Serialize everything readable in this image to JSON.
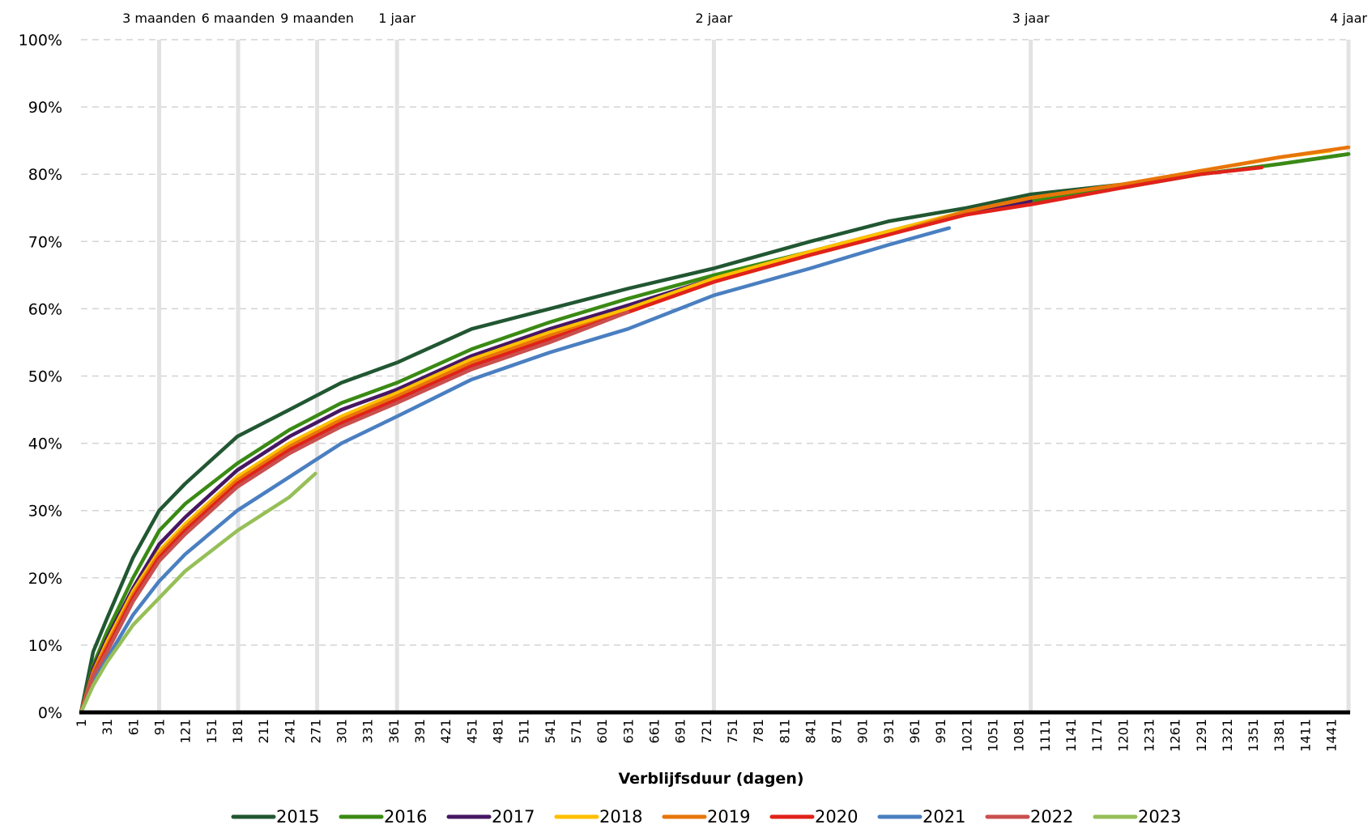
{
  "chart_data": {
    "type": "line",
    "title": "",
    "xlabel": "Verblijfsduur (dagen)",
    "ylabel": "",
    "xlim": [
      1,
      1461
    ],
    "ylim": [
      0,
      100
    ],
    "y_ticks": [
      0,
      10,
      20,
      30,
      40,
      50,
      60,
      70,
      80,
      90,
      100
    ],
    "y_tick_labels": [
      "0%",
      "10%",
      "20%",
      "30%",
      "40%",
      "50%",
      "60%",
      "70%",
      "80%",
      "90%",
      "100%"
    ],
    "x_tick_labels": [
      "1",
      "31",
      "61",
      "91",
      "121",
      "151",
      "181",
      "211",
      "241",
      "271",
      "301",
      "331",
      "361",
      "391",
      "421",
      "451",
      "481",
      "511",
      "541",
      "571",
      "601",
      "631",
      "661",
      "691",
      "721",
      "751",
      "781",
      "811",
      "841",
      "871",
      "901",
      "931",
      "961",
      "991",
      "1021",
      "1051",
      "1081",
      "1111",
      "1141",
      "1171",
      "1201",
      "1231",
      "1261",
      "1291",
      "1321",
      "1351",
      "1381",
      "1411",
      "1441"
    ],
    "markers": [
      {
        "day": 91,
        "label": "3 maanden"
      },
      {
        "day": 182,
        "label": "6 maanden"
      },
      {
        "day": 273,
        "label": "9 maanden"
      },
      {
        "day": 365,
        "label": "1 jaar"
      },
      {
        "day": 730,
        "label": "2 jaar"
      },
      {
        "day": 1095,
        "label": "3 jaar"
      },
      {
        "day": 1461,
        "label": "4 jaar"
      }
    ],
    "grid": true,
    "legend_position": "bottom",
    "series": [
      {
        "name": "2015",
        "color": "#215732",
        "x": [
          1,
          15,
          31,
          61,
          91,
          121,
          181,
          241,
          271,
          301,
          365,
          451,
          541,
          631,
          730,
          841,
          931,
          1021,
          1095,
          1201,
          1291,
          1381,
          1461
        ],
        "y": [
          0,
          9,
          14,
          23,
          30,
          34,
          41,
          45,
          47,
          49,
          52,
          57,
          60,
          63,
          66,
          70,
          73,
          75,
          77,
          78.5,
          80,
          81.5,
          83
        ]
      },
      {
        "name": "2016",
        "color": "#3a8a14",
        "x": [
          1,
          15,
          31,
          61,
          91,
          121,
          181,
          241,
          271,
          301,
          365,
          451,
          541,
          631,
          730,
          841,
          931,
          1021,
          1095,
          1201,
          1291,
          1381,
          1461
        ],
        "y": [
          0,
          7,
          12,
          20,
          27,
          31,
          37,
          42,
          44,
          46,
          49,
          54,
          58,
          61.5,
          65,
          68.5,
          71.5,
          74.5,
          76,
          78,
          80,
          81.5,
          83
        ]
      },
      {
        "name": "2017",
        "color": "#461763",
        "x": [
          1,
          15,
          31,
          61,
          91,
          121,
          181,
          241,
          271,
          301,
          365,
          451,
          541,
          631,
          730,
          841,
          931,
          1021,
          1095
        ],
        "y": [
          0,
          6.5,
          11,
          18.5,
          25,
          29,
          36,
          41,
          43,
          45,
          48,
          53,
          57,
          60.5,
          64.5,
          68,
          71.5,
          74,
          76
        ]
      },
      {
        "name": "2018",
        "color": "#ffbf00",
        "x": [
          1,
          15,
          31,
          61,
          91,
          121,
          181,
          241,
          271,
          301,
          365,
          451,
          541,
          631,
          730,
          841,
          931,
          1021,
          1095,
          1201,
          1291,
          1381,
          1441
        ],
        "y": [
          0,
          6,
          10.5,
          18,
          24,
          28,
          35,
          40,
          42,
          44,
          47.5,
          52.5,
          56.5,
          60,
          64.5,
          68.5,
          71.5,
          74.5,
          76.5,
          78.5,
          80.5,
          82.5,
          83.5
        ]
      },
      {
        "name": "2019",
        "color": "#e8750a",
        "x": [
          1,
          15,
          31,
          61,
          91,
          121,
          181,
          241,
          271,
          301,
          365,
          451,
          541,
          631,
          730,
          841,
          931,
          1021,
          1095,
          1201,
          1291,
          1381,
          1461
        ],
        "y": [
          0,
          6,
          10,
          17.5,
          23.5,
          27.5,
          34.5,
          39.5,
          41.5,
          43.5,
          47,
          52,
          56,
          59.5,
          64,
          68,
          71,
          74.5,
          76.5,
          78.5,
          80.5,
          82.5,
          84
        ]
      },
      {
        "name": "2020",
        "color": "#e0221a",
        "x": [
          1,
          15,
          31,
          61,
          91,
          121,
          181,
          241,
          271,
          301,
          365,
          451,
          541,
          631,
          730,
          841,
          931,
          1021,
          1095,
          1201,
          1291,
          1361
        ],
        "y": [
          0,
          5.5,
          9.5,
          17,
          23,
          27,
          34,
          39,
          41,
          43,
          46.5,
          51.5,
          55.5,
          59.5,
          64,
          68,
          71,
          74,
          75.5,
          78,
          80,
          81
        ]
      },
      {
        "name": "2021",
        "color": "#4a7fc1",
        "x": [
          1,
          15,
          31,
          61,
          91,
          121,
          181,
          241,
          271,
          301,
          365,
          451,
          541,
          631,
          730,
          841,
          931,
          1001
        ],
        "y": [
          0,
          4.5,
          8,
          14.5,
          19.5,
          23.5,
          30,
          35,
          37.5,
          40,
          44,
          49.5,
          53.5,
          57,
          62,
          66,
          69.5,
          72
        ]
      },
      {
        "name": "2022",
        "color": "#c9504e",
        "x": [
          1,
          15,
          31,
          61,
          91,
          121,
          181,
          241,
          271,
          301,
          365,
          451,
          541,
          631
        ],
        "y": [
          0,
          5.5,
          9,
          16.5,
          22.5,
          26.5,
          33.5,
          38.5,
          40.5,
          42.5,
          46,
          51,
          55,
          59.5
        ]
      },
      {
        "name": "2023",
        "color": "#96bf58",
        "x": [
          1,
          15,
          31,
          61,
          91,
          121,
          181,
          241,
          271
        ],
        "y": [
          0,
          4,
          7.5,
          13,
          17,
          21,
          27,
          32,
          35.5
        ]
      }
    ]
  }
}
